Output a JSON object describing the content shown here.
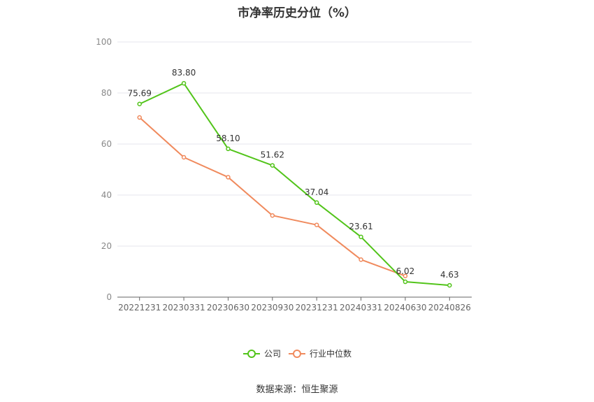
{
  "title": "市净率历史分位（%）",
  "source": "数据来源：恒生聚源",
  "colors": {
    "company": "#52c41a",
    "industry": "#f08a5d",
    "grid": "#e6e6ee",
    "axis": "#666666"
  },
  "chart_data": {
    "type": "line",
    "categories": [
      "20221231",
      "20230331",
      "20230630",
      "20230930",
      "20231231",
      "20240331",
      "20240630",
      "20240826"
    ],
    "ylim": [
      0,
      100
    ],
    "yticks": [
      0,
      20,
      40,
      60,
      80,
      100
    ],
    "grid": true,
    "legend_position": "bottom",
    "series": [
      {
        "name": "公司",
        "values": [
          75.69,
          83.8,
          58.1,
          51.62,
          37.04,
          23.61,
          6.02,
          4.63
        ],
        "labels": [
          "75.69",
          "83.80",
          "58.10",
          "51.62",
          "37.04",
          "23.61",
          "6.02",
          "4.63"
        ]
      },
      {
        "name": "行业中位数",
        "values": [
          70.4,
          54.8,
          47.0,
          32.0,
          28.3,
          14.7,
          8.3,
          null
        ]
      }
    ]
  }
}
